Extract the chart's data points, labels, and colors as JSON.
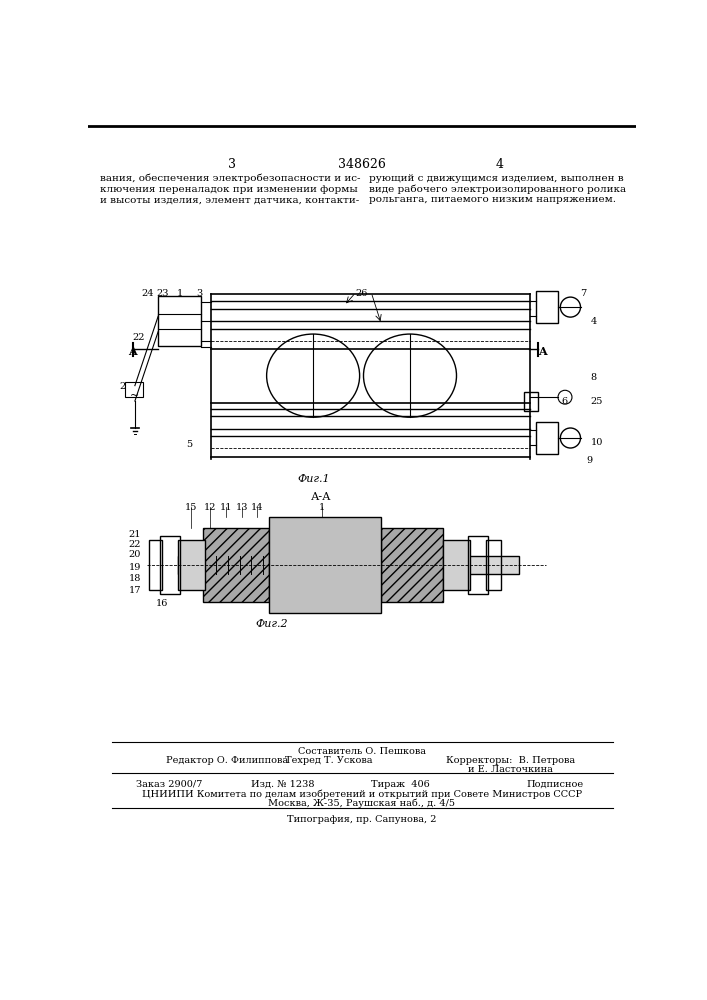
{
  "page_number_center": "348626",
  "page_col_left": "3",
  "page_col_right": "4",
  "text_left": "вания, обеспечения электробезопасности и ис-\nключения переналадок при изменении формы\nи высоты изделия, элемент датчика, контакти-",
  "text_right": "рующий с движущимся изделием, выполнен в\nвиде рабочего электроизолированного ролика\nрольганга, питаемого низким напряжением.",
  "fig1_caption": "Фиг.1",
  "fig2_caption": "Фиг.2",
  "fig2_label": "А-А",
  "editor": "Редактор О. Филиппова",
  "tech": "Техред Т. Ускова",
  "correctors_line1": "Корректоры:  В. Петрова",
  "correctors_line2": "и Е. Ласточкина",
  "sestavitel": "Составитель О. Пешкова",
  "order": "Заказ 2900/7",
  "issue": "Изд. № 1238",
  "circulation": "Тираж  406",
  "subscription": "Подписное",
  "institute": "ЦНИИПИ Комитета по делам изобретений и открытий при Совете Министров СССР",
  "address": "Москва, Ж-35, Раушская наб., д. 4/5",
  "typography": "Типография, пр. Сапунова, 2",
  "bg_color": "#ffffff",
  "text_color": "#000000"
}
